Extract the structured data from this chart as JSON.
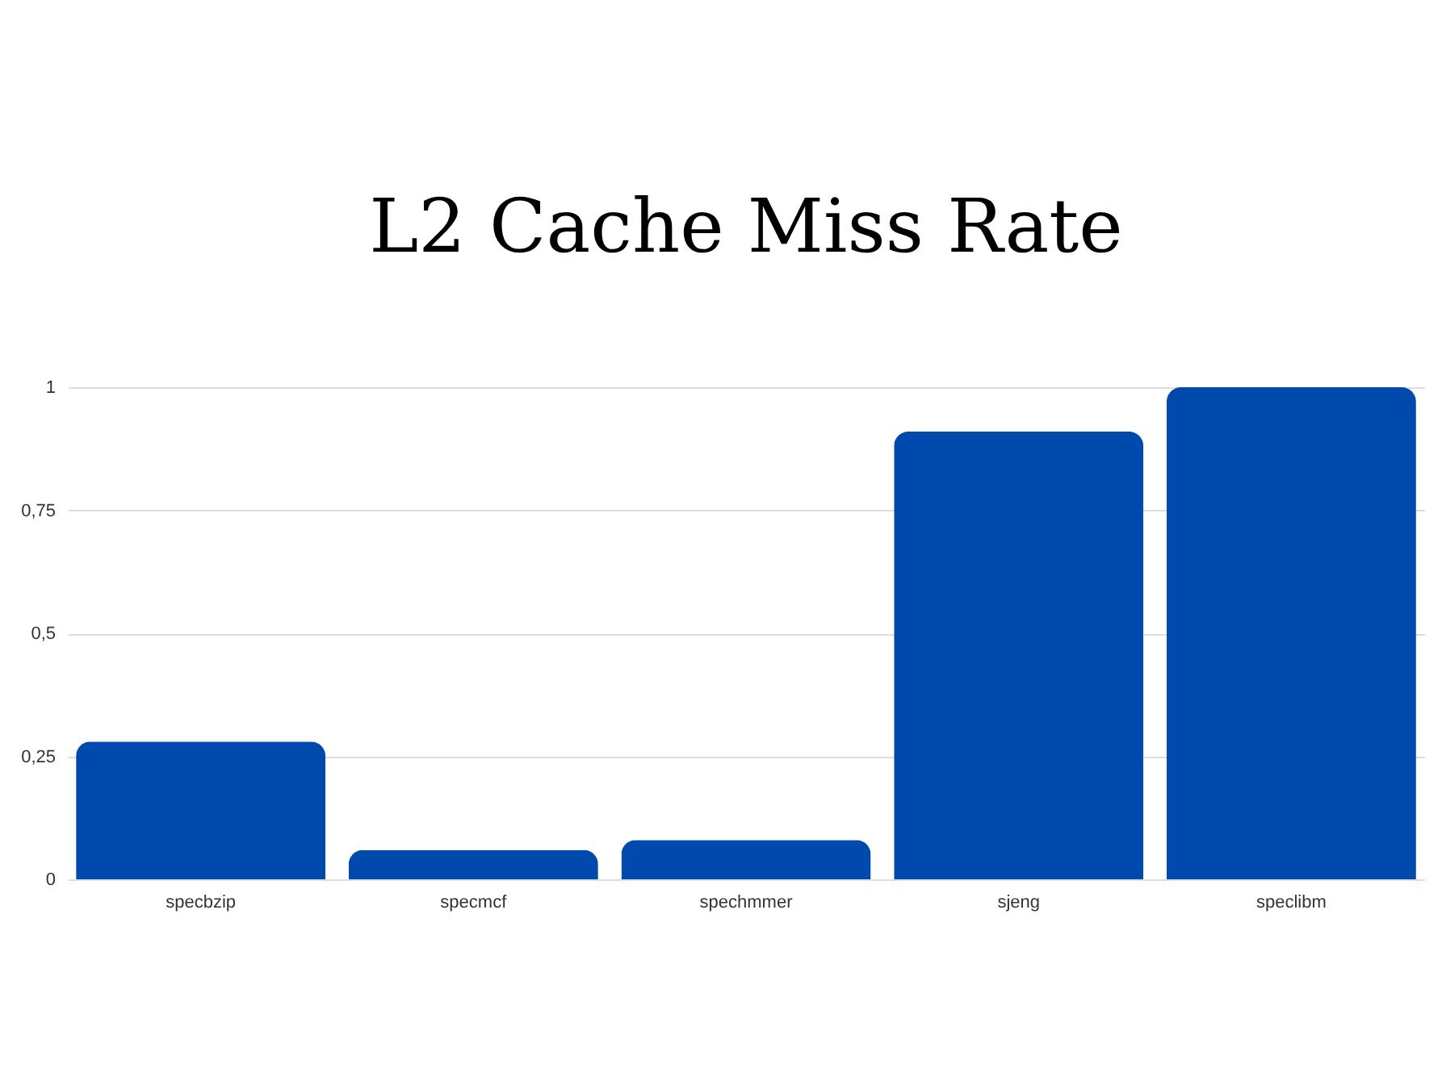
{
  "chart_data": {
    "type": "bar",
    "title": "L2 Cache Miss Rate",
    "categories": [
      "specbzip",
      "specmcf",
      "spechmmer",
      "sjeng",
      "speclibm"
    ],
    "values": [
      0.28,
      0.06,
      0.08,
      0.91,
      1
    ],
    "color": "#004aad",
    "ylim": [
      0,
      1
    ],
    "yticks": [
      {
        "value": 0,
        "label": "0"
      },
      {
        "value": 0.25,
        "label": "0,25"
      },
      {
        "value": 0.5,
        "label": "0,5"
      },
      {
        "value": 0.75,
        "label": "0,75"
      },
      {
        "value": 1,
        "label": "1"
      }
    ],
    "grid": "y"
  }
}
